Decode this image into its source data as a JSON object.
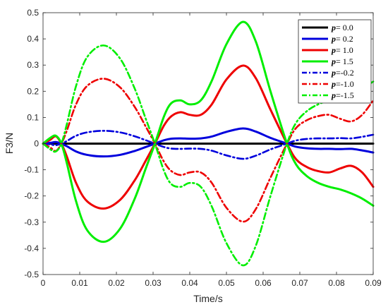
{
  "chart_data": {
    "type": "line",
    "xlabel": "Time/s",
    "ylabel": "F3/N",
    "xlim": [
      0,
      0.09
    ],
    "ylim": [
      -0.5,
      0.5
    ],
    "x_ticks": [
      0,
      0.01,
      0.02,
      0.03,
      0.04,
      0.05,
      0.06,
      0.07,
      0.08,
      0.09
    ],
    "y_ticks": [
      -0.5,
      -0.4,
      -0.3,
      -0.2,
      -0.1,
      0,
      0.1,
      0.2,
      0.3,
      0.4,
      0.5
    ],
    "x_tick_labels": [
      "0",
      "0.01",
      "0.02",
      "0.03",
      "0.04",
      "0.05",
      "0.06",
      "0.07",
      "0.08",
      "0.09"
    ],
    "y_tick_labels": [
      "-0.5",
      "-0.4",
      "-0.3",
      "-0.2",
      "-0.1",
      "0",
      "0.1",
      "0.2",
      "0.3",
      "0.4",
      "0.5"
    ],
    "grid": false,
    "legend_position": "top-right",
    "series": [
      {
        "name": "= 0.0",
        "legend_p": "p",
        "color": "#000000",
        "style": "solid",
        "x": [
          0,
          0.09
        ],
        "y": [
          0,
          0
        ]
      },
      {
        "name": "= 0.2",
        "legend_p": "p",
        "color": "#0000dd",
        "style": "solid",
        "x": [
          0,
          0.002,
          0.0035,
          0.005,
          0.0065,
          0.009,
          0.012,
          0.0165,
          0.021,
          0.025,
          0.028,
          0.0305,
          0.033,
          0.035,
          0.0375,
          0.04,
          0.043,
          0.046,
          0.05,
          0.0545,
          0.058,
          0.062,
          0.0665,
          0.069,
          0.072,
          0.075,
          0.078,
          0.081,
          0.084,
          0.087,
          0.09
        ],
        "y": [
          0,
          0.003,
          0.006,
          0,
          -0.01,
          -0.03,
          -0.043,
          -0.049,
          -0.043,
          -0.028,
          -0.013,
          0,
          0.013,
          0.019,
          0.02,
          0.019,
          0.02,
          0.027,
          0.045,
          0.058,
          0.046,
          0.022,
          0,
          -0.012,
          -0.018,
          -0.02,
          -0.02,
          -0.021,
          -0.02,
          -0.026,
          -0.034
        ]
      },
      {
        "name": "= 1.0",
        "legend_p": "p",
        "color": "#ee0000",
        "style": "solid",
        "x": [
          0,
          0.002,
          0.0035,
          0.005,
          0.0065,
          0.009,
          0.012,
          0.0165,
          0.021,
          0.025,
          0.028,
          0.0305,
          0.033,
          0.035,
          0.0375,
          0.04,
          0.043,
          0.046,
          0.05,
          0.0545,
          0.058,
          0.062,
          0.0665,
          0.069,
          0.072,
          0.075,
          0.078,
          0.081,
          0.084,
          0.087,
          0.09
        ],
        "y": [
          0,
          0.015,
          0.028,
          0,
          -0.05,
          -0.15,
          -0.22,
          -0.248,
          -0.215,
          -0.14,
          -0.065,
          0,
          0.07,
          0.105,
          0.12,
          0.11,
          0.11,
          0.15,
          0.245,
          0.298,
          0.25,
          0.13,
          0,
          -0.06,
          -0.09,
          -0.105,
          -0.11,
          -0.095,
          -0.085,
          -0.11,
          -0.165
        ]
      },
      {
        "name": "= 1.5",
        "legend_p": "p",
        "color": "#00ee00",
        "style": "solid",
        "x": [
          0,
          0.002,
          0.0035,
          0.005,
          0.0065,
          0.009,
          0.012,
          0.0165,
          0.021,
          0.025,
          0.028,
          0.0305,
          0.033,
          0.035,
          0.0375,
          0.04,
          0.043,
          0.046,
          0.05,
          0.0545,
          0.058,
          0.062,
          0.0665,
          0.069,
          0.072,
          0.075,
          0.078,
          0.081,
          0.084,
          0.087,
          0.09
        ],
        "y": [
          0,
          0.022,
          0.03,
          0,
          -0.075,
          -0.22,
          -0.33,
          -0.375,
          -0.325,
          -0.21,
          -0.095,
          0,
          0.105,
          0.155,
          0.165,
          0.15,
          0.165,
          0.24,
          0.38,
          0.465,
          0.39,
          0.2,
          0,
          -0.08,
          -0.125,
          -0.15,
          -0.165,
          -0.175,
          -0.19,
          -0.21,
          -0.237
        ]
      },
      {
        "name": "=-0.2",
        "legend_p": "p",
        "color": "#0000dd",
        "style": "dashdot",
        "x": [
          0,
          0.002,
          0.0035,
          0.005,
          0.0065,
          0.009,
          0.012,
          0.0165,
          0.021,
          0.025,
          0.028,
          0.0305,
          0.033,
          0.035,
          0.0375,
          0.04,
          0.043,
          0.046,
          0.05,
          0.0545,
          0.058,
          0.062,
          0.0665,
          0.069,
          0.072,
          0.075,
          0.078,
          0.081,
          0.084,
          0.087,
          0.09
        ],
        "y": [
          0,
          -0.003,
          -0.006,
          0,
          0.01,
          0.03,
          0.043,
          0.049,
          0.043,
          0.028,
          0.013,
          0,
          -0.013,
          -0.019,
          -0.02,
          -0.019,
          -0.02,
          -0.027,
          -0.045,
          -0.058,
          -0.046,
          -0.022,
          0,
          0.012,
          0.018,
          0.02,
          0.02,
          0.021,
          0.02,
          0.026,
          0.034
        ]
      },
      {
        "name": "=-1.0",
        "legend_p": "p",
        "color": "#ee0000",
        "style": "dashdot",
        "x": [
          0,
          0.002,
          0.0035,
          0.005,
          0.0065,
          0.009,
          0.012,
          0.0165,
          0.021,
          0.025,
          0.028,
          0.0305,
          0.033,
          0.035,
          0.0375,
          0.04,
          0.043,
          0.046,
          0.05,
          0.0545,
          0.058,
          0.062,
          0.0665,
          0.069,
          0.072,
          0.075,
          0.078,
          0.081,
          0.084,
          0.087,
          0.09
        ],
        "y": [
          0,
          -0.015,
          -0.028,
          0,
          0.05,
          0.15,
          0.22,
          0.248,
          0.215,
          0.14,
          0.065,
          0,
          -0.07,
          -0.105,
          -0.12,
          -0.11,
          -0.11,
          -0.15,
          -0.245,
          -0.298,
          -0.25,
          -0.13,
          0,
          0.06,
          0.09,
          0.105,
          0.11,
          0.095,
          0.085,
          0.11,
          0.165
        ]
      },
      {
        "name": "=-1.5",
        "legend_p": "p",
        "color": "#00ee00",
        "style": "dashdot",
        "x": [
          0,
          0.002,
          0.0035,
          0.005,
          0.0065,
          0.009,
          0.012,
          0.0165,
          0.021,
          0.025,
          0.028,
          0.0305,
          0.033,
          0.035,
          0.0375,
          0.04,
          0.043,
          0.046,
          0.05,
          0.0545,
          0.058,
          0.062,
          0.0665,
          0.069,
          0.072,
          0.075,
          0.078,
          0.081,
          0.084,
          0.087,
          0.09
        ],
        "y": [
          0,
          -0.022,
          -0.03,
          0,
          0.075,
          0.22,
          0.33,
          0.375,
          0.325,
          0.21,
          0.095,
          0,
          -0.105,
          -0.155,
          -0.165,
          -0.15,
          -0.165,
          -0.24,
          -0.38,
          -0.465,
          -0.39,
          -0.2,
          0,
          0.08,
          0.125,
          0.15,
          0.165,
          0.175,
          0.19,
          0.21,
          0.237
        ]
      }
    ]
  }
}
